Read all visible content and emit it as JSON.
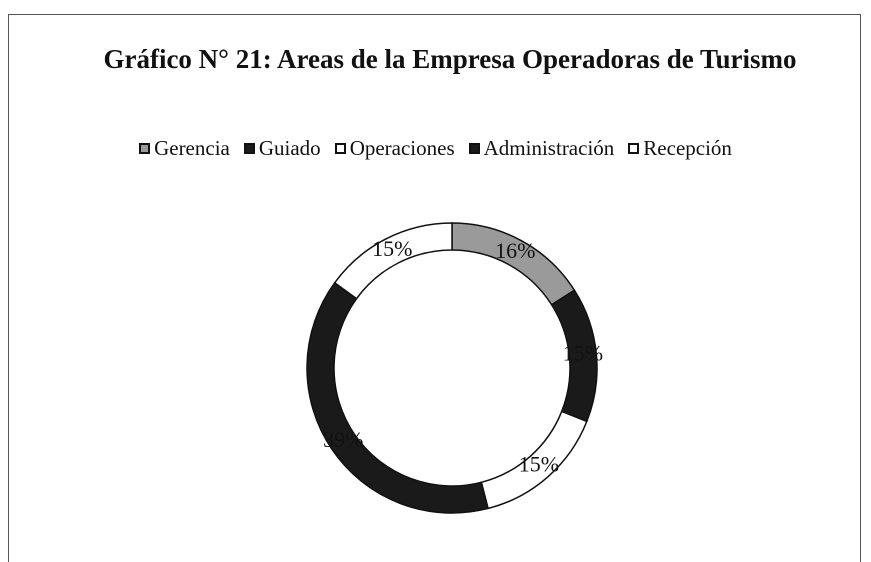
{
  "chart_data": {
    "type": "donut",
    "title": "Gráfico N° 21: Areas de la Empresa Operadoras de Turismo",
    "categories": [
      "Gerencia",
      "Guiado",
      "Operaciones",
      "Administración",
      "Recepción"
    ],
    "values": [
      16,
      15,
      15,
      39,
      15
    ],
    "value_labels": [
      "16%",
      "15%",
      "15%",
      "39%",
      "15%"
    ],
    "colors": [
      "#9a9a9a",
      "#1a1a1a",
      "#ffffff",
      "#1a1a1a",
      "#ffffff"
    ],
    "legend": "top"
  }
}
